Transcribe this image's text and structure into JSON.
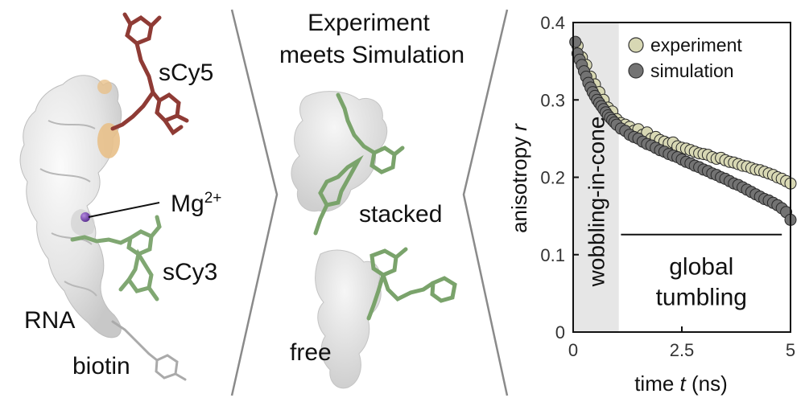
{
  "left_panel": {
    "labels": {
      "dye_acceptor": "sCy5",
      "ion": "Mg",
      "ion_charge": "2+",
      "dye_donor": "sCy3",
      "molecule": "RNA",
      "anchor": "biotin"
    },
    "colors": {
      "acceptor": "#8f3b35",
      "donor": "#7aa36b",
      "ion": "#7a4fb0",
      "accent": "#e8c08a"
    }
  },
  "center_panel": {
    "title_line1": "Experiment",
    "title_line2": "meets Simulation",
    "state_top": "stacked",
    "state_bottom": "free"
  },
  "chart_data": {
    "type": "scatter",
    "xlabel_main": "time ",
    "xlabel_var": "t",
    "xlabel_unit": " (ns)",
    "ylabel_main": "anisotropy ",
    "ylabel_var": "r",
    "xlim": [
      0,
      5
    ],
    "ylim": [
      0,
      0.4
    ],
    "xticks": [
      0,
      2.5,
      5
    ],
    "xtick_labels": [
      "0",
      "2.5",
      "5"
    ],
    "yticks": [
      0,
      0.1,
      0.2,
      0.3,
      0.4
    ],
    "ytick_labels": [
      "0",
      "0.1",
      "0.2",
      "0.3",
      "0.4"
    ],
    "legend_position": "top-right",
    "shaded_region": {
      "x": [
        0,
        1.05
      ],
      "label": "wobbling-in-cone",
      "color": "#e6e6e6"
    },
    "bracket": {
      "x": [
        1.1,
        4.8
      ],
      "y": 0.126,
      "label_line1": "global",
      "label_line2": "tumbling"
    },
    "series": [
      {
        "name": "experiment",
        "color": "#d8d8b4",
        "points": [
          [
            0.1,
            0.37
          ],
          [
            0.2,
            0.355
          ],
          [
            0.3,
            0.345
          ],
          [
            0.4,
            0.33
          ],
          [
            0.5,
            0.32
          ],
          [
            0.6,
            0.31
          ],
          [
            0.7,
            0.3
          ],
          [
            0.8,
            0.29
          ],
          [
            0.9,
            0.285
          ],
          [
            1.0,
            0.275
          ],
          [
            1.1,
            0.27
          ],
          [
            1.2,
            0.268
          ],
          [
            1.3,
            0.265
          ],
          [
            1.4,
            0.26
          ],
          [
            1.5,
            0.262
          ],
          [
            1.6,
            0.255
          ],
          [
            1.7,
            0.258
          ],
          [
            1.8,
            0.25
          ],
          [
            1.9,
            0.252
          ],
          [
            2.0,
            0.248
          ],
          [
            2.1,
            0.246
          ],
          [
            2.2,
            0.244
          ],
          [
            2.3,
            0.245
          ],
          [
            2.4,
            0.24
          ],
          [
            2.5,
            0.238
          ],
          [
            2.6,
            0.237
          ],
          [
            2.7,
            0.235
          ],
          [
            2.8,
            0.233
          ],
          [
            2.9,
            0.231
          ],
          [
            3.0,
            0.23
          ],
          [
            3.1,
            0.229
          ],
          [
            3.2,
            0.226
          ],
          [
            3.3,
            0.224
          ],
          [
            3.4,
            0.225
          ],
          [
            3.5,
            0.222
          ],
          [
            3.6,
            0.22
          ],
          [
            3.7,
            0.219
          ],
          [
            3.8,
            0.217
          ],
          [
            3.9,
            0.215
          ],
          [
            4.0,
            0.214
          ],
          [
            4.1,
            0.212
          ],
          [
            4.2,
            0.21
          ],
          [
            4.3,
            0.209
          ],
          [
            4.4,
            0.207
          ],
          [
            4.5,
            0.205
          ],
          [
            4.6,
            0.203
          ],
          [
            4.7,
            0.2
          ],
          [
            4.8,
            0.198
          ],
          [
            4.9,
            0.195
          ],
          [
            5.0,
            0.192
          ]
        ]
      },
      {
        "name": "simulation",
        "color": "#737373",
        "points": [
          [
            0.05,
            0.375
          ],
          [
            0.1,
            0.36
          ],
          [
            0.15,
            0.352
          ],
          [
            0.2,
            0.345
          ],
          [
            0.25,
            0.337
          ],
          [
            0.3,
            0.33
          ],
          [
            0.35,
            0.322
          ],
          [
            0.4,
            0.316
          ],
          [
            0.45,
            0.31
          ],
          [
            0.5,
            0.305
          ],
          [
            0.55,
            0.3
          ],
          [
            0.6,
            0.296
          ],
          [
            0.65,
            0.292
          ],
          [
            0.7,
            0.288
          ],
          [
            0.75,
            0.284
          ],
          [
            0.8,
            0.28
          ],
          [
            0.85,
            0.277
          ],
          [
            0.9,
            0.274
          ],
          [
            0.95,
            0.271
          ],
          [
            1.0,
            0.268
          ],
          [
            1.1,
            0.263
          ],
          [
            1.2,
            0.26
          ],
          [
            1.3,
            0.255
          ],
          [
            1.4,
            0.252
          ],
          [
            1.5,
            0.25
          ],
          [
            1.6,
            0.246
          ],
          [
            1.7,
            0.243
          ],
          [
            1.8,
            0.241
          ],
          [
            1.9,
            0.238
          ],
          [
            2.0,
            0.235
          ],
          [
            2.1,
            0.233
          ],
          [
            2.2,
            0.23
          ],
          [
            2.3,
            0.228
          ],
          [
            2.4,
            0.226
          ],
          [
            2.5,
            0.223
          ],
          [
            2.6,
            0.22
          ],
          [
            2.7,
            0.218
          ],
          [
            2.8,
            0.215
          ],
          [
            2.9,
            0.213
          ],
          [
            3.0,
            0.21
          ],
          [
            3.1,
            0.208
          ],
          [
            3.2,
            0.205
          ],
          [
            3.3,
            0.203
          ],
          [
            3.4,
            0.2
          ],
          [
            3.5,
            0.198
          ],
          [
            3.6,
            0.195
          ],
          [
            3.7,
            0.192
          ],
          [
            3.8,
            0.19
          ],
          [
            3.9,
            0.187
          ],
          [
            4.0,
            0.184
          ],
          [
            4.1,
            0.181
          ],
          [
            4.2,
            0.178
          ],
          [
            4.3,
            0.175
          ],
          [
            4.4,
            0.172
          ],
          [
            4.5,
            0.17
          ],
          [
            4.6,
            0.167
          ],
          [
            4.7,
            0.164
          ],
          [
            4.8,
            0.16
          ],
          [
            4.9,
            0.155
          ],
          [
            5.0,
            0.145
          ]
        ]
      }
    ]
  }
}
